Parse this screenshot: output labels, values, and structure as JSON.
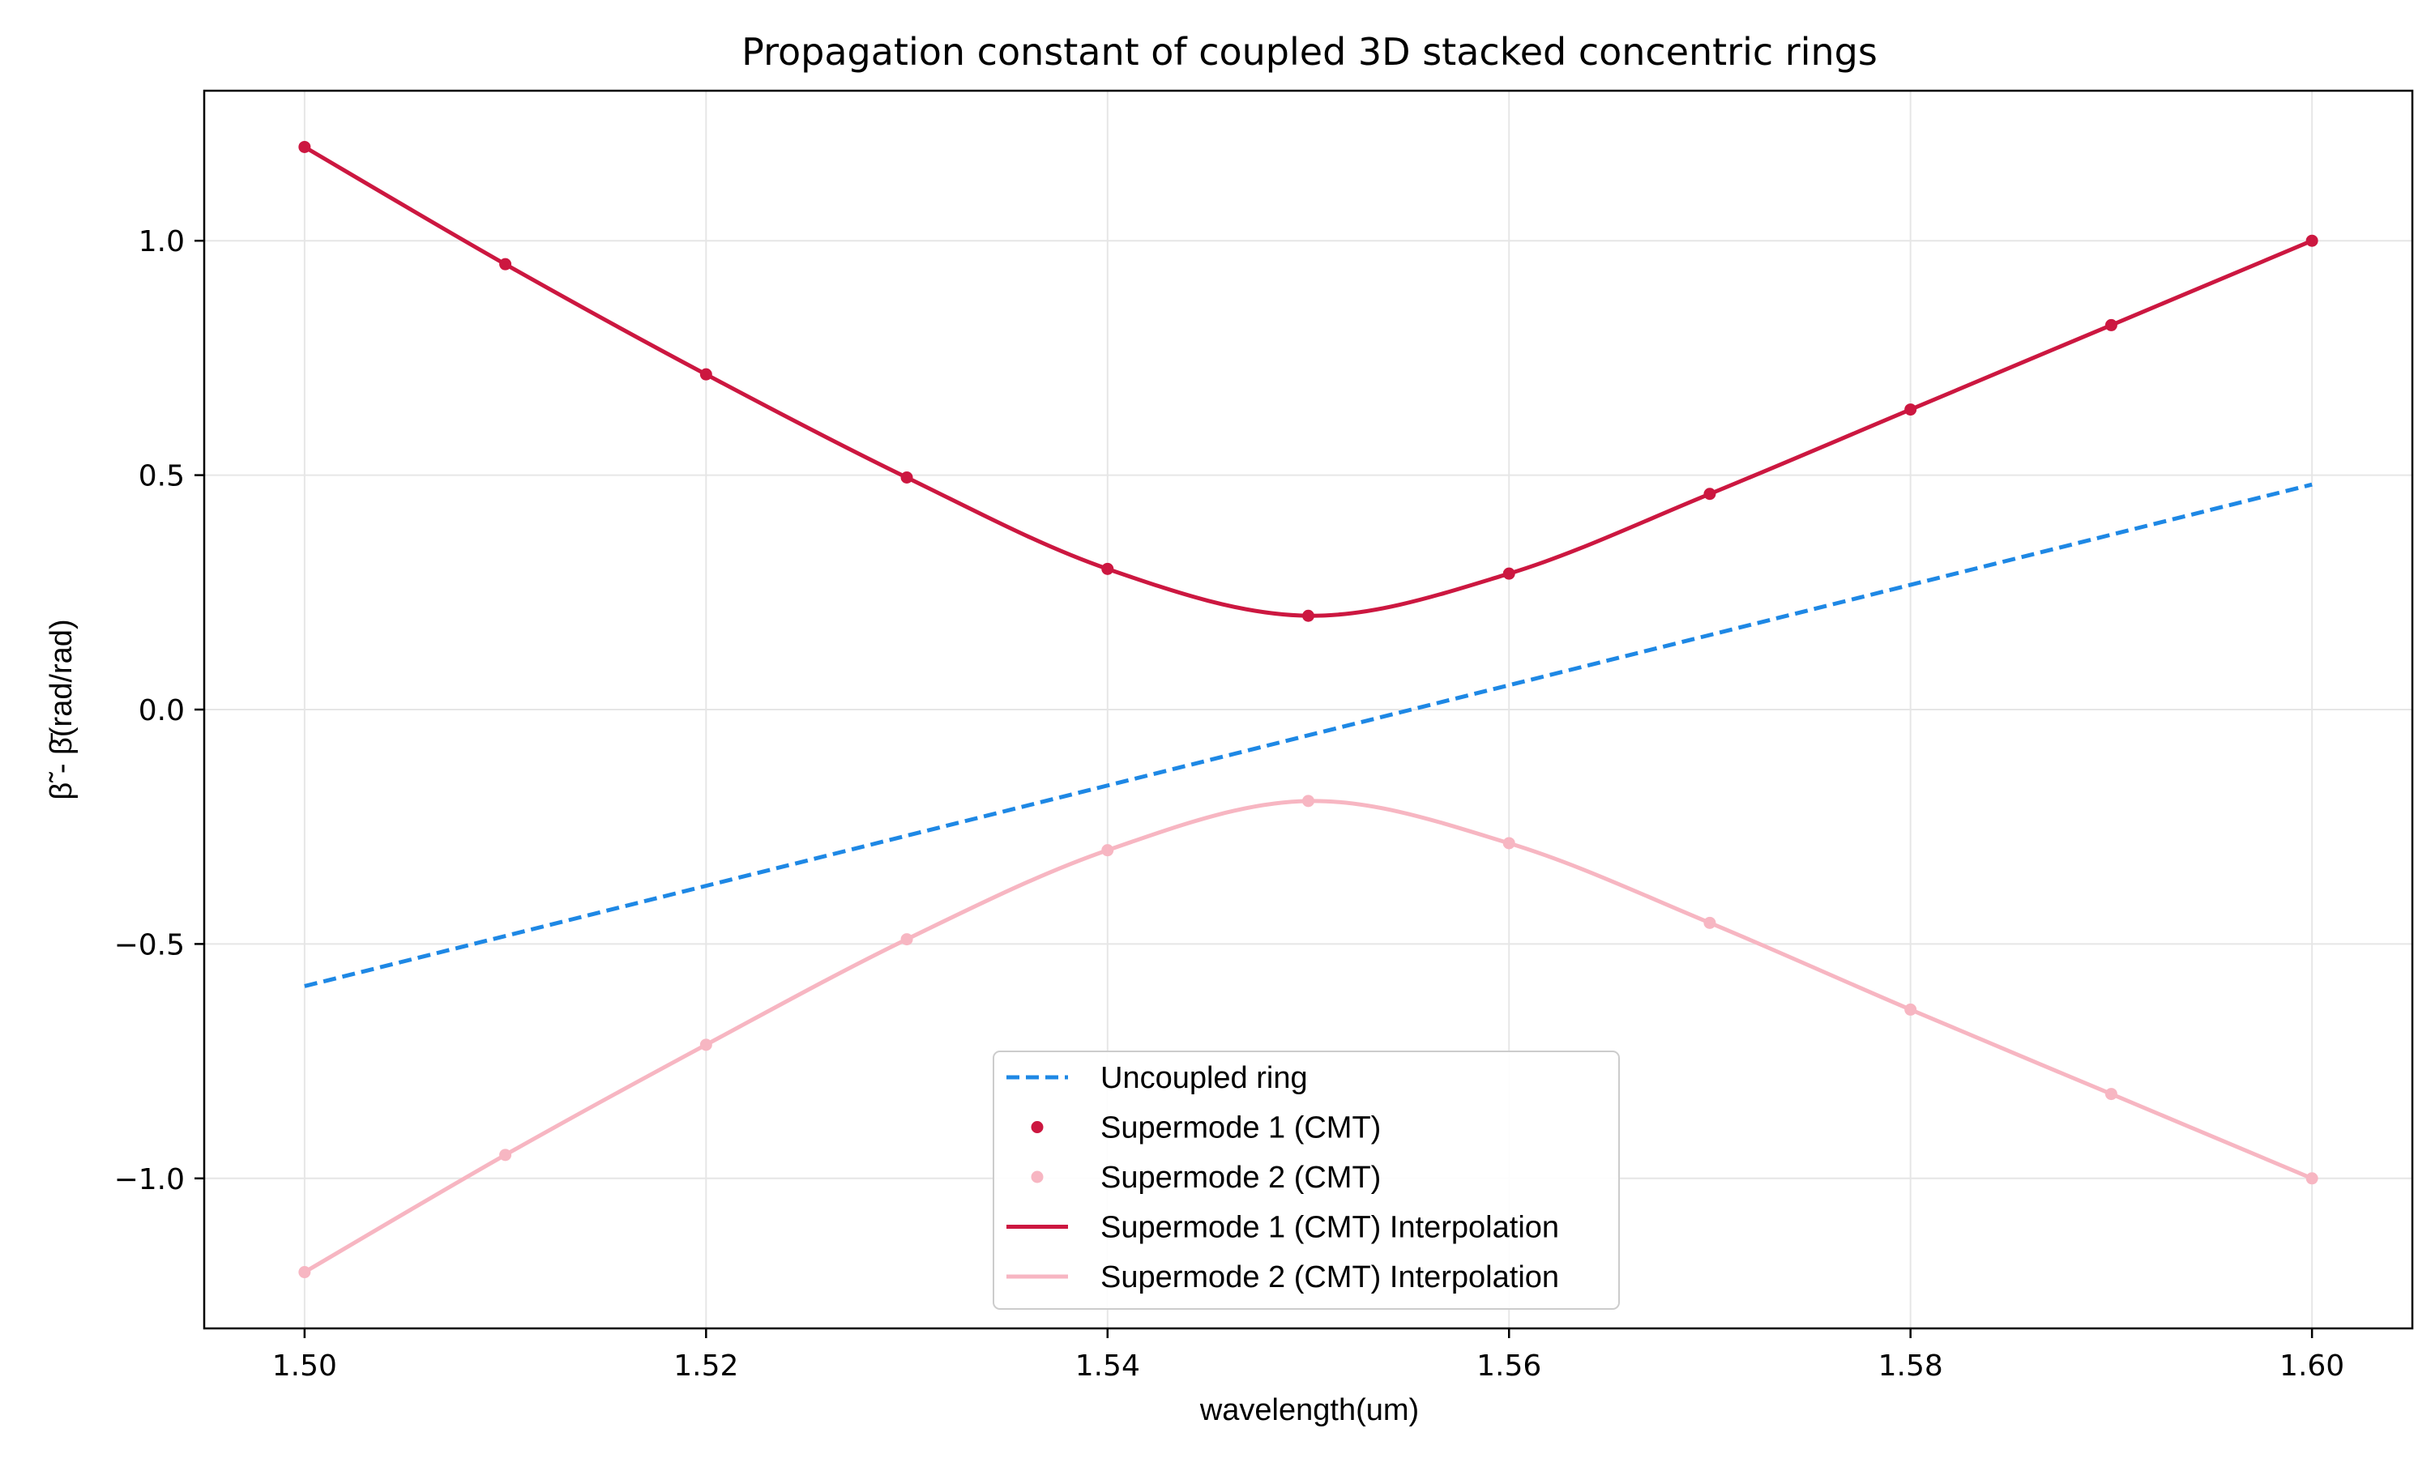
{
  "chart_data": {
    "type": "line",
    "title": "Propagation constant of coupled 3D stacked concentric rings",
    "xlabel": "wavelength(um)",
    "ylabel": "β̃ - β̄(rad/rad)",
    "xlim": [
      1.495,
      1.605
    ],
    "ylim": [
      -1.32,
      1.32
    ],
    "xticks": [
      1.5,
      1.52,
      1.54,
      1.56,
      1.58,
      1.6
    ],
    "xtick_labels": [
      "1.50",
      "1.52",
      "1.54",
      "1.56",
      "1.58",
      "1.60"
    ],
    "yticks": [
      -1.0,
      -0.5,
      0.0,
      0.5,
      1.0
    ],
    "ytick_labels": [
      "−1.0",
      "−0.5",
      "0.0",
      "0.5",
      "1.0"
    ],
    "grid": true,
    "legend_position": "lower-center",
    "x": [
      1.5,
      1.51,
      1.52,
      1.53,
      1.54,
      1.55,
      1.56,
      1.57,
      1.58,
      1.59,
      1.6
    ],
    "series": [
      {
        "name": "Uncoupled ring",
        "style": "dashed-line",
        "color": "#1e88e5",
        "x": [
          1.5,
          1.6
        ],
        "values": [
          -0.59,
          0.48
        ]
      },
      {
        "name": "Supermode 1 (CMT)",
        "style": "markers",
        "color": "#cc1740",
        "values": [
          1.2,
          0.95,
          0.715,
          0.495,
          0.3,
          0.2,
          0.29,
          0.46,
          0.64,
          0.82,
          1.0
        ]
      },
      {
        "name": "Supermode 2 (CMT)",
        "style": "markers",
        "color": "#f7b6c2",
        "values": [
          -1.2,
          -0.95,
          -0.715,
          -0.49,
          -0.3,
          -0.195,
          -0.285,
          -0.455,
          -0.64,
          -0.82,
          -1.0
        ]
      },
      {
        "name": "Supermode 1 (CMT) Interpolation",
        "style": "line",
        "color": "#cc1740",
        "values": [
          1.2,
          0.95,
          0.715,
          0.495,
          0.3,
          0.2,
          0.29,
          0.46,
          0.64,
          0.82,
          1.0
        ]
      },
      {
        "name": "Supermode 2 (CMT) Interpolation",
        "style": "line",
        "color": "#f7b6c2",
        "values": [
          -1.2,
          -0.95,
          -0.715,
          -0.49,
          -0.3,
          -0.195,
          -0.285,
          -0.455,
          -0.64,
          -0.82,
          -1.0
        ]
      }
    ]
  }
}
